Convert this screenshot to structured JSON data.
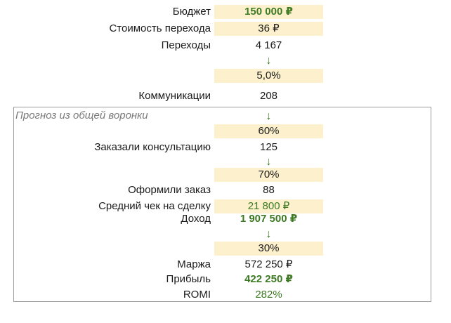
{
  "rows": {
    "budget": {
      "label": "Бюджет",
      "value": "150 000 ₽"
    },
    "cpc": {
      "label": "Стоимость перехода",
      "value": "36 ₽"
    },
    "clicks": {
      "label": "Переходы",
      "value": "4 167"
    },
    "arrow1": {
      "value": "↓"
    },
    "conv1": {
      "value": "5,0%"
    },
    "comms": {
      "label": "Коммуникации",
      "value": "208"
    },
    "arrow2": {
      "value": "↓"
    },
    "conv2": {
      "value": "60%"
    },
    "consult": {
      "label": "Заказали консультацию",
      "value": "125"
    },
    "arrow3": {
      "value": "↓"
    },
    "conv3": {
      "value": "70%"
    },
    "orders": {
      "label": "Оформили заказ",
      "value": "88"
    },
    "avg_check": {
      "label": "Средний чек на сделку",
      "value": "21 800 ₽"
    },
    "revenue": {
      "label": "Доход",
      "value": "1 907 500 ₽"
    },
    "arrow4": {
      "value": "↓"
    },
    "margin_pct": {
      "value": "30%"
    },
    "margin": {
      "label": "Маржа",
      "value": "572 250 ₽"
    },
    "profit": {
      "label": "Прибыль",
      "value": "422 250 ₽"
    },
    "romi": {
      "label": "ROMI",
      "value": "282%"
    }
  },
  "forecast_box": {
    "title": "Прогноз из общей воронки"
  },
  "colors": {
    "input_fill": "#fdf0cc",
    "accent_green": "#3d7a23",
    "box_border": "#9b9b9b"
  }
}
